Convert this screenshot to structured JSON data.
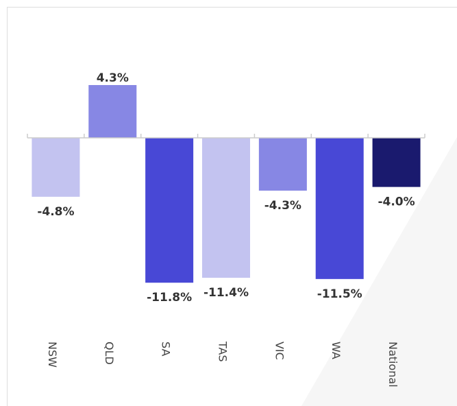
{
  "chart_data": {
    "type": "bar",
    "categories": [
      "NSW",
      "QLD",
      "SA",
      "TAS",
      "VIC",
      "WA",
      "National"
    ],
    "values": [
      -4.8,
      4.3,
      -11.8,
      -11.4,
      -4.3,
      -11.5,
      -4.0
    ],
    "value_labels": [
      "-4.8%",
      "4.3%",
      "-11.8%",
      "-11.4%",
      "-4.3%",
      "-11.5%",
      "-4.0%"
    ],
    "colors": [
      "#c3c3f0",
      "#8787e4",
      "#4848d6",
      "#c3c3f0",
      "#8787e4",
      "#4848d6",
      "#1a1a6e"
    ],
    "ylim": [
      -14,
      6
    ]
  }
}
